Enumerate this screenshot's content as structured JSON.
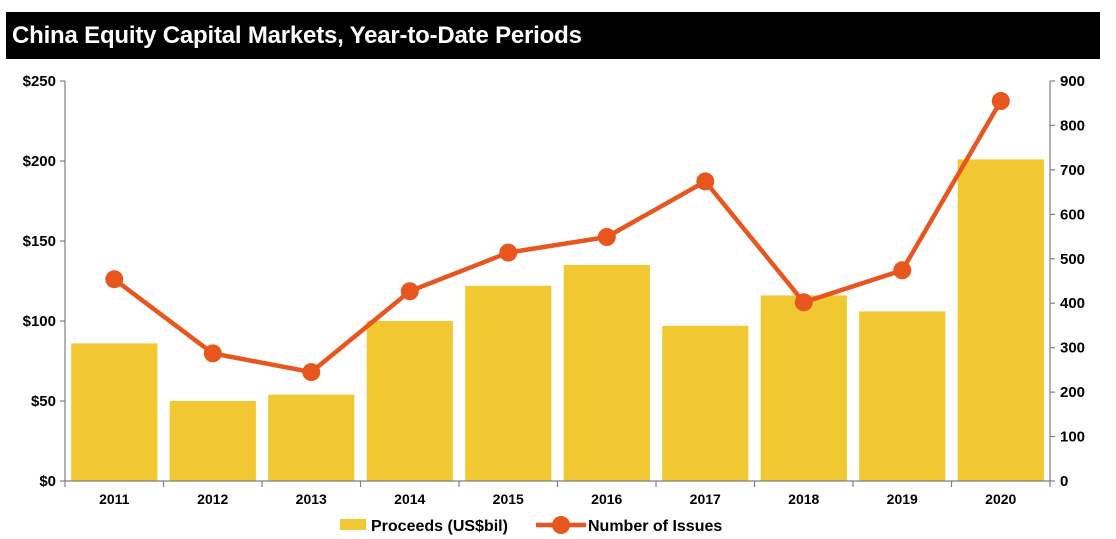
{
  "chart_data": {
    "type": "bar",
    "title": "China Equity Capital Markets, Year-to-Date Periods",
    "categories": [
      "2011",
      "2012",
      "2013",
      "2014",
      "2015",
      "2016",
      "2017",
      "2018",
      "2019",
      "2020"
    ],
    "series": [
      {
        "name": "Proceeds (US$bil)",
        "type": "bar",
        "axis": "left",
        "color": "#F2C832",
        "values": [
          86,
          50,
          54,
          100,
          122,
          135,
          97,
          116,
          106,
          201
        ]
      },
      {
        "name": "Number of Issues",
        "type": "line",
        "axis": "right",
        "color": "#E8561F",
        "values": [
          454,
          287,
          245,
          427,
          514,
          549,
          674,
          402,
          474,
          855
        ]
      }
    ],
    "y_left": {
      "min": 0,
      "max": 250,
      "ticks": [
        0,
        50,
        100,
        150,
        200,
        250
      ],
      "tick_labels": [
        "$0",
        "$50",
        "$100",
        "$150",
        "$200",
        "$250"
      ]
    },
    "y_right": {
      "min": 0,
      "max": 900,
      "ticks": [
        0,
        100,
        200,
        300,
        400,
        500,
        600,
        700,
        800,
        900
      ],
      "tick_labels": [
        "0",
        "100",
        "200",
        "300",
        "400",
        "500",
        "600",
        "700",
        "800",
        "900"
      ]
    },
    "grid": false,
    "legend_position": "bottom-center"
  }
}
